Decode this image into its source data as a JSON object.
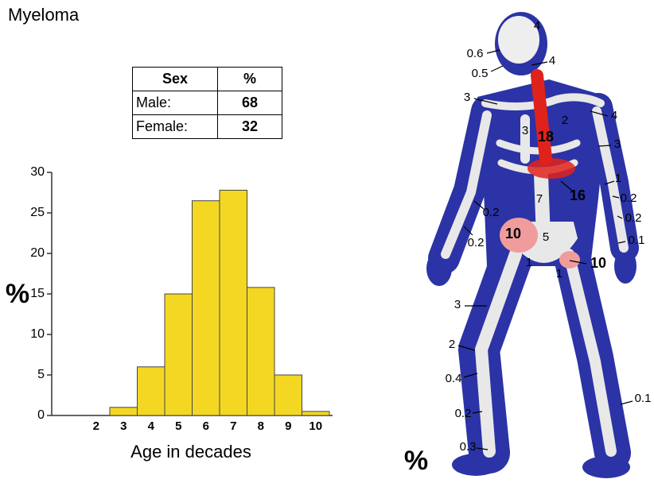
{
  "title": "Myeloma",
  "table": {
    "header": [
      "Sex",
      "%"
    ],
    "rows": [
      [
        "Male:",
        68
      ],
      [
        "Female:",
        32
      ]
    ]
  },
  "chart_data": {
    "type": "bar",
    "x_label": "Age in decades",
    "y_label": "%",
    "categories": [
      null,
      "2",
      "3",
      "4",
      "5",
      "6",
      "7",
      "8",
      "9",
      "10"
    ],
    "values": [
      0,
      0,
      1,
      6,
      15,
      26.5,
      27.8,
      15.8,
      5,
      0.5
    ],
    "color": "#f4d723",
    "ylim": [
      0,
      30
    ],
    "yticks": [
      0,
      5,
      10,
      15,
      20,
      25,
      30
    ],
    "grid": false
  },
  "skeleton": {
    "unit": "%",
    "labels": [
      4,
      0.6,
      4,
      0.5,
      3,
      4,
      2,
      3,
      18,
      3,
      1,
      16,
      0.2,
      7,
      0.2,
      0.2,
      10,
      5,
      0.2,
      0.1,
      1,
      10,
      1,
      3,
      2,
      0.4,
      0.1,
      0.2,
      0.3
    ]
  }
}
